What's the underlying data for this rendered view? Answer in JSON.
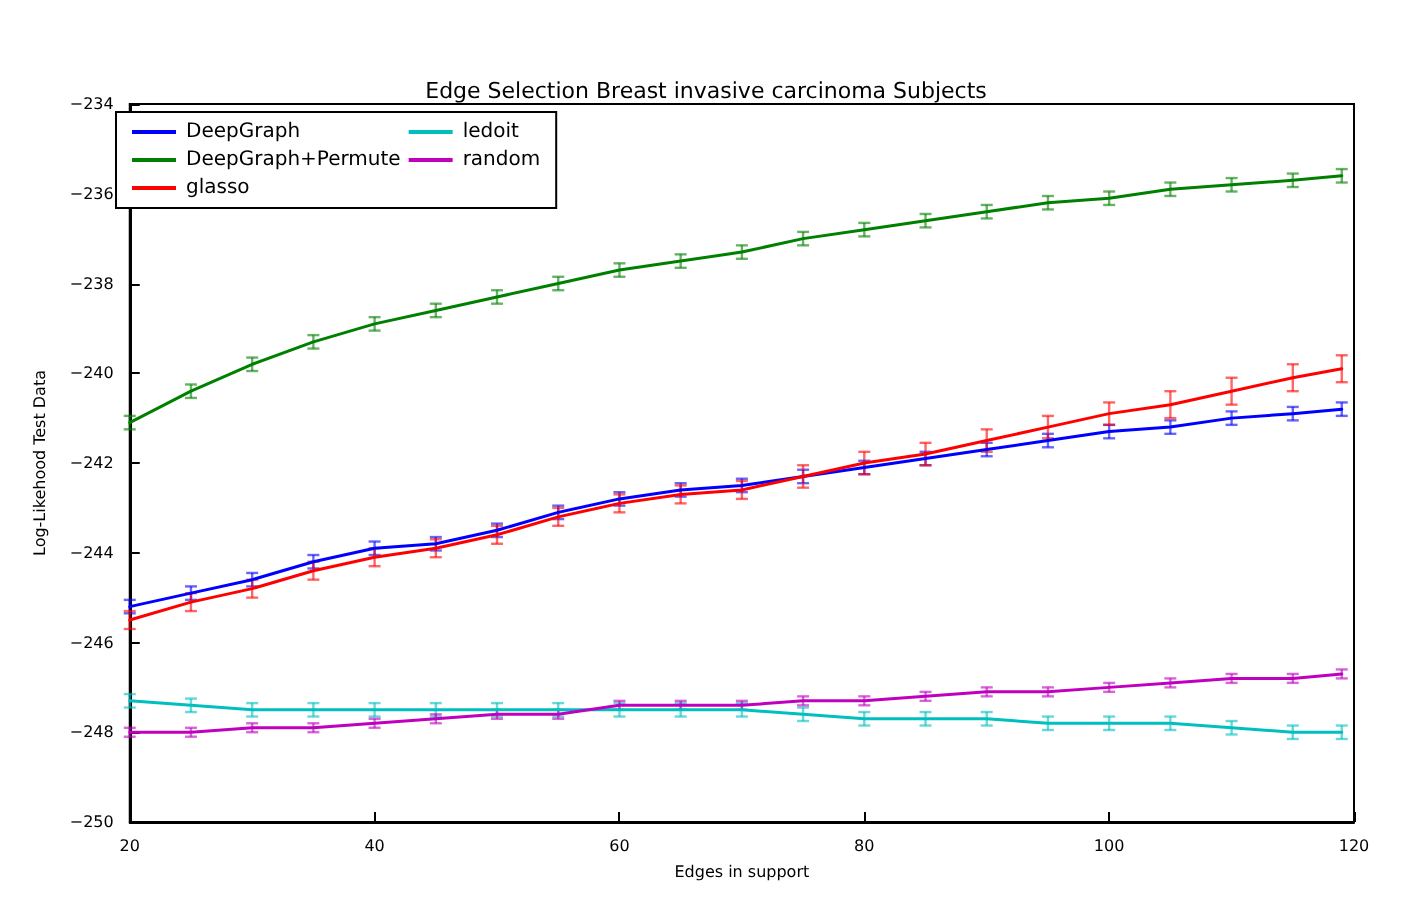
{
  "chart_data": {
    "type": "line",
    "title": "Edge Selection Breast invasive carcinoma Subjects",
    "xlabel": "Edges in support",
    "ylabel": "Log-Likehood Test Data",
    "x": [
      20,
      25,
      30,
      35,
      40,
      45,
      50,
      55,
      60,
      65,
      70,
      75,
      80,
      85,
      90,
      95,
      100,
      105,
      110,
      115,
      119
    ],
    "xlim": [
      20,
      120
    ],
    "xticks": [
      20,
      40,
      60,
      80,
      100,
      120
    ],
    "ylim": [
      -250,
      -234
    ],
    "yticks": [
      -250,
      -248,
      -246,
      -244,
      -242,
      -240,
      -238,
      -236,
      -234
    ],
    "grid": false,
    "legend": "top left",
    "marker": "none",
    "line_style": "solid",
    "series": [
      {
        "name": "DeepGraph",
        "color": "#0000ff",
        "values": [
          -245.2,
          -244.9,
          -244.6,
          -244.2,
          -243.9,
          -243.8,
          -243.5,
          -243.1,
          -242.8,
          -242.6,
          -242.5,
          -242.3,
          -242.1,
          -241.9,
          -241.7,
          -241.5,
          -241.3,
          -241.2,
          -241.0,
          -240.9,
          -240.8
        ],
        "errors": [
          0.15,
          0.15,
          0.15,
          0.15,
          0.15,
          0.15,
          0.15,
          0.15,
          0.15,
          0.15,
          0.15,
          0.15,
          0.15,
          0.15,
          0.15,
          0.15,
          0.15,
          0.15,
          0.15,
          0.15,
          0.15
        ]
      },
      {
        "name": "DeepGraph+Permute",
        "color": "#008000",
        "values": [
          -241.1,
          -240.4,
          -239.8,
          -239.3,
          -238.9,
          -238.6,
          -238.3,
          -238.0,
          -237.7,
          -237.5,
          -237.3,
          -237.0,
          -236.8,
          -236.6,
          -236.4,
          -236.2,
          -236.1,
          -235.9,
          -235.8,
          -235.7,
          -235.6
        ],
        "errors": [
          0.15,
          0.15,
          0.15,
          0.15,
          0.15,
          0.15,
          0.15,
          0.15,
          0.15,
          0.15,
          0.15,
          0.15,
          0.15,
          0.15,
          0.15,
          0.15,
          0.15,
          0.15,
          0.15,
          0.15,
          0.15
        ]
      },
      {
        "name": "glasso",
        "color": "#ff0000",
        "values": [
          -245.5,
          -245.1,
          -244.8,
          -244.4,
          -244.1,
          -243.9,
          -243.6,
          -243.2,
          -242.9,
          -242.7,
          -242.6,
          -242.3,
          -242.0,
          -241.8,
          -241.5,
          -241.2,
          -240.9,
          -240.7,
          -240.4,
          -240.1,
          -239.9
        ],
        "errors": [
          0.2,
          0.2,
          0.2,
          0.2,
          0.2,
          0.2,
          0.2,
          0.2,
          0.2,
          0.2,
          0.2,
          0.25,
          0.25,
          0.25,
          0.25,
          0.25,
          0.25,
          0.3,
          0.3,
          0.3,
          0.3
        ]
      },
      {
        "name": "ledoit",
        "color": "#00bfbf",
        "values": [
          -247.3,
          -247.4,
          -247.5,
          -247.5,
          -247.5,
          -247.5,
          -247.5,
          -247.5,
          -247.5,
          -247.5,
          -247.5,
          -247.6,
          -247.7,
          -247.7,
          -247.7,
          -247.8,
          -247.8,
          -247.8,
          -247.9,
          -248.0,
          -248.0
        ],
        "errors": [
          0.15,
          0.15,
          0.15,
          0.15,
          0.15,
          0.15,
          0.15,
          0.15,
          0.15,
          0.15,
          0.15,
          0.15,
          0.15,
          0.15,
          0.15,
          0.15,
          0.15,
          0.15,
          0.15,
          0.15,
          0.15
        ]
      },
      {
        "name": "random",
        "color": "#bf00bf",
        "values": [
          -248.0,
          -248.0,
          -247.9,
          -247.9,
          -247.8,
          -247.7,
          -247.6,
          -247.6,
          -247.4,
          -247.4,
          -247.4,
          -247.3,
          -247.3,
          -247.2,
          -247.1,
          -247.1,
          -247.0,
          -246.9,
          -246.8,
          -246.8,
          -246.7
        ],
        "errors": [
          0.1,
          0.1,
          0.1,
          0.1,
          0.1,
          0.1,
          0.1,
          0.1,
          0.1,
          0.1,
          0.1,
          0.1,
          0.1,
          0.1,
          0.1,
          0.1,
          0.1,
          0.1,
          0.1,
          0.1,
          0.1
        ]
      }
    ]
  }
}
